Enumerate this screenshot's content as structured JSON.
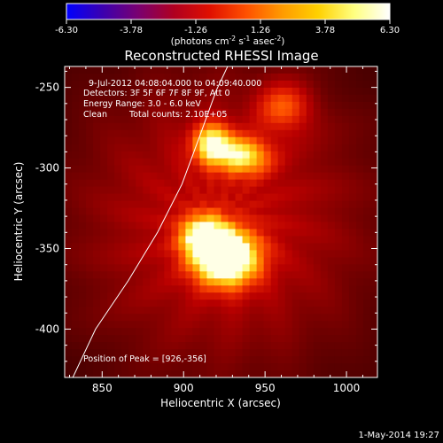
{
  "chart_data": {
    "type": "heatmap",
    "title": "Reconstructed RHESSI Image",
    "xlabel": "Heliocentric X (arcsec)",
    "ylabel": "Heliocentric Y (arcsec)",
    "xlim": [
      827,
      1019
    ],
    "ylim": [
      -430,
      -237
    ],
    "x_ticks": [
      850,
      900,
      950,
      1000
    ],
    "y_ticks": [
      -250,
      -300,
      -350,
      -400
    ],
    "colorbar": {
      "range": [
        -6.3,
        6.3
      ],
      "tick_labels": [
        "-6.30",
        "-3.78",
        "-1.26",
        "1.26",
        "3.78",
        "6.30"
      ],
      "tick_values": [
        -6.3,
        -3.78,
        -1.26,
        1.26,
        3.78,
        6.3
      ],
      "unit_label": "(photons cm",
      "unit_exp1": "-2",
      "unit_mid": " s",
      "unit_exp2": "-1",
      "unit_mid2": " asec",
      "unit_exp3": "-2",
      "unit_end": ")",
      "stops": [
        "#0000ff",
        "#3b00b0",
        "#7a0070",
        "#b00020",
        "#e01000",
        "#ff5000",
        "#ff9a00",
        "#ffd000",
        "#ffff80",
        "#ffffff"
      ]
    },
    "annotations": {
      "time_range": "9-Jul-2012 04:08:04.000 to 04:09:40.000",
      "detectors": "Detectors: 3F 5F 6F 7F 8F 9F, Att 0",
      "energy": "Energy Range: 3.0 - 6.0 keV",
      "clean_label": "Clean",
      "counts": "Total counts: 2.10E+05",
      "peak": "Position of Peak = [926,-356]"
    },
    "peak_position": [
      926,
      -356
    ],
    "sources": [
      {
        "x": 926,
        "y": -356,
        "amplitude": 6.3,
        "sx": 14,
        "sy": 12
      },
      {
        "x": 912,
        "y": -342,
        "amplitude": 4.0,
        "sx": 10,
        "sy": 9
      },
      {
        "x": 918,
        "y": -285,
        "amplitude": 4.4,
        "sx": 9,
        "sy": 9
      },
      {
        "x": 938,
        "y": -293,
        "amplitude": 3.6,
        "sx": 11,
        "sy": 8
      },
      {
        "x": 962,
        "y": -262,
        "amplitude": 2.4,
        "sx": 12,
        "sy": 11
      }
    ],
    "limb": [
      [
        832,
        -430
      ],
      [
        846,
        -400
      ],
      [
        866,
        -370
      ],
      [
        884,
        -340
      ],
      [
        899,
        -310
      ],
      [
        910,
        -280
      ],
      [
        920,
        -252
      ],
      [
        927,
        -237
      ]
    ]
  },
  "footer": {
    "timestamp": "1-May-2014 19:27"
  }
}
